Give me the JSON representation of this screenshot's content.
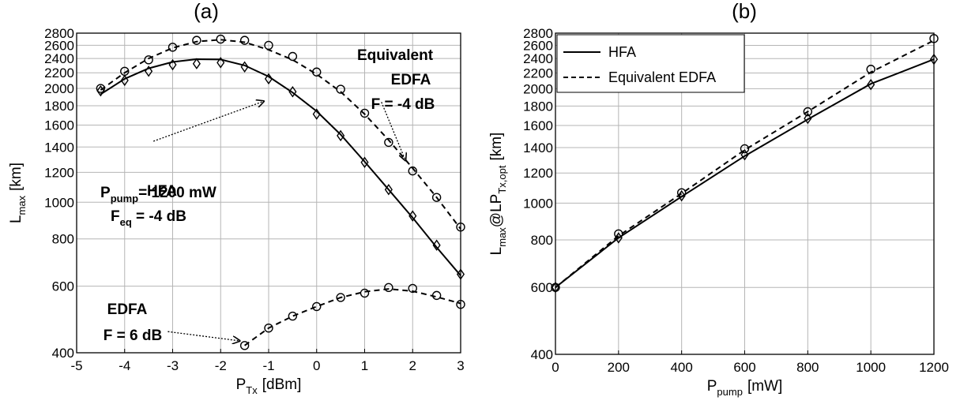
{
  "chart_data": [
    {
      "id": "a",
      "type": "line",
      "title": "(a)",
      "xlabel": {
        "main": "P",
        "sub": "Tx",
        "unit": "[dBm]"
      },
      "ylabel": {
        "main": "L",
        "sub": "max",
        "unit": "[km]"
      },
      "xlim": [
        -5,
        3
      ],
      "ylim": [
        400,
        2800
      ],
      "yscale": "log",
      "grid": true,
      "xticks": [
        -5,
        -4,
        -3,
        -2,
        -1,
        0,
        1,
        2,
        3
      ],
      "yticks": [
        400,
        600,
        800,
        1000,
        1200,
        1400,
        1600,
        1800,
        2000,
        2200,
        2400,
        2600,
        2800
      ],
      "series": [
        {
          "style": "solid",
          "marker": "diamond",
          "x": [
            -4.5,
            -4,
            -3.5,
            -3,
            -2.5,
            -2,
            -1.5,
            -1,
            -0.5,
            0,
            0.5,
            1,
            1.5,
            2,
            2.5,
            3
          ],
          "curve": [
            1930,
            2120,
            2260,
            2350,
            2390,
            2385,
            2300,
            2150,
            1950,
            1740,
            1510,
            1280,
            1080,
            910,
            760,
            640
          ],
          "markers": [
            1970,
            2100,
            2220,
            2310,
            2325,
            2340,
            2280,
            2120,
            1960,
            1710,
            1500,
            1275,
            1080,
            920,
            770,
            645
          ]
        },
        {
          "style": "dashed",
          "marker": "circle",
          "x": [
            -4.5,
            -4,
            -3.5,
            -3,
            -2.5,
            -2,
            -1.5,
            -1,
            -0.5,
            0,
            0.5,
            1,
            1.5,
            2,
            2.5,
            3
          ],
          "curve": [
            1980,
            2200,
            2400,
            2560,
            2660,
            2690,
            2650,
            2530,
            2380,
            2180,
            1960,
            1710,
            1460,
            1230,
            1030,
            850
          ],
          "markers": [
            2000,
            2220,
            2380,
            2570,
            2680,
            2700,
            2680,
            2600,
            2430,
            2210,
            1990,
            1720,
            1440,
            1210,
            1030,
            860
          ]
        },
        {
          "style": "dashed",
          "marker": "circle",
          "x": [
            -1.5,
            -1,
            -0.5,
            0,
            0.5,
            1,
            1.5,
            2,
            2.5,
            3
          ],
          "curve": [
            418,
            465,
            500,
            530,
            560,
            580,
            590,
            582,
            562,
            540
          ],
          "markers": [
            418,
            465,
            500,
            530,
            560,
            575,
            595,
            592,
            567,
            537
          ]
        }
      ],
      "annotations": [
        {
          "lines": [
            "Equivalent",
            "EDFA",
            "F = -4 dB"
          ]
        },
        {
          "lines": [
            "HFA"
          ],
          "p": {
            "main": "P",
            "sub": "pump",
            "rest": "= 1200 mW"
          },
          "f": {
            "main": "F",
            "sub": "eq",
            "rest": " = -4 dB"
          }
        },
        {
          "lines": [
            "EDFA",
            "F = 6 dB"
          ]
        }
      ],
      "arrows": [
        {
          "from": [
            -3.4,
            1450
          ],
          "to": [
            -1.1,
            1850
          ]
        },
        {
          "from": [
            1.35,
            1840
          ],
          "to": [
            1.85,
            1290
          ]
        },
        {
          "from": [
            -3.1,
            455
          ],
          "to": [
            -1.6,
            430
          ]
        }
      ]
    },
    {
      "id": "b",
      "type": "line",
      "title": "(b)",
      "xlabel": {
        "main": "P",
        "sub": "pump",
        "unit": "[mW]"
      },
      "ylabel": {
        "main": "L",
        "sub": "max",
        "mid": "@LP",
        "sub2": "Tx,opt",
        "unit": "[km]"
      },
      "xlim": [
        0,
        1200
      ],
      "ylim": [
        400,
        2800
      ],
      "yscale": "log",
      "grid": true,
      "legend": "top-left",
      "xticks": [
        0,
        200,
        400,
        600,
        800,
        1000,
        1200
      ],
      "yticks": [
        400,
        600,
        800,
        1000,
        1200,
        1400,
        1600,
        1800,
        2000,
        2200,
        2400,
        2600,
        2800
      ],
      "series": [
        {
          "name": "HFA",
          "style": "solid",
          "marker": "diamond",
          "x": [
            0,
            200,
            400,
            600,
            800,
            1000,
            1200
          ],
          "curve": [
            600,
            810,
            1040,
            1330,
            1660,
            2060,
            2390
          ],
          "markers": [
            600,
            810,
            1045,
            1340,
            1670,
            2050,
            2390
          ]
        },
        {
          "name": "Equivalent EDFA",
          "style": "dashed",
          "marker": "circle",
          "x": [
            0,
            200,
            400,
            600,
            800,
            1000,
            1200
          ],
          "curve": [
            600,
            820,
            1060,
            1380,
            1740,
            2210,
            2680
          ],
          "markers": [
            600,
            830,
            1065,
            1390,
            1740,
            2250,
            2710
          ]
        }
      ]
    }
  ]
}
